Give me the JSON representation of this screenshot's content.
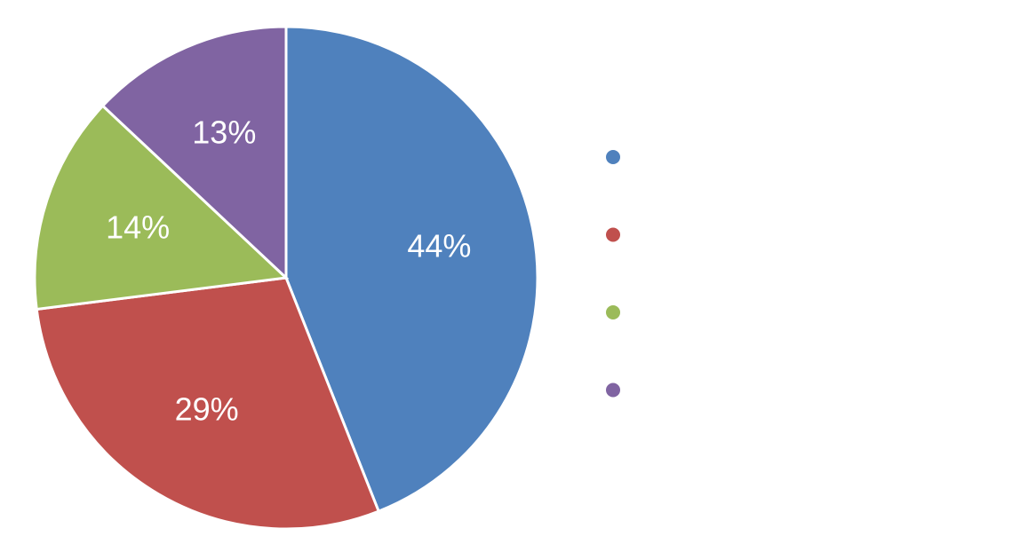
{
  "chart_data": {
    "type": "pie",
    "values": [
      44,
      29,
      14,
      13
    ],
    "value_labels": [
      "44%",
      "29%",
      "14%",
      "13%"
    ],
    "colors": [
      "#4f81bd",
      "#c0504d",
      "#9bbb59",
      "#8064a2"
    ],
    "legend": "right"
  }
}
